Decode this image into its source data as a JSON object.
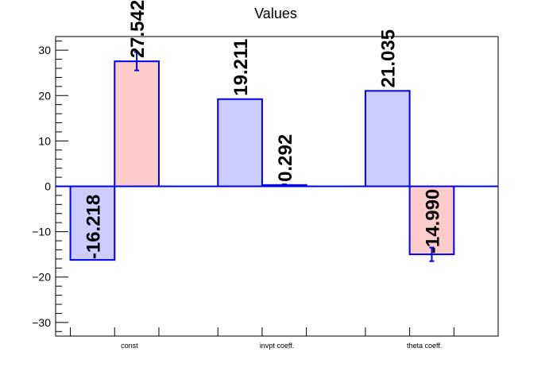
{
  "chart_data": {
    "type": "bar",
    "title": "Values",
    "xlabel": "",
    "ylabel": "",
    "categories": [
      "const",
      "invpt coeff.",
      "theta coeff."
    ],
    "series": [
      {
        "values": [
          -16.218,
          19.211,
          21.035
        ],
        "errors": [
          0.0,
          0.0,
          0.0
        ],
        "fill": "#ccccff",
        "labels": [
          "-16.218",
          "19.211",
          "21.035"
        ]
      },
      {
        "values": [
          27.542,
          0.292,
          -14.99
        ],
        "errors": [
          2.0,
          0.15,
          1.5
        ],
        "fill": "#ffcccc",
        "labels": [
          "27.542",
          "0.292",
          "-14.990"
        ]
      }
    ],
    "ylim": [
      -33,
      33
    ],
    "yticks": [
      -30,
      -20,
      -10,
      0,
      10,
      20,
      30
    ],
    "ytick_labels": [
      "−30",
      "−20",
      "−10",
      "0",
      "10",
      "20",
      "30"
    ],
    "grid": false,
    "legend": "none",
    "colors": {
      "outline": "#0000ee",
      "axis": "#000000"
    }
  }
}
